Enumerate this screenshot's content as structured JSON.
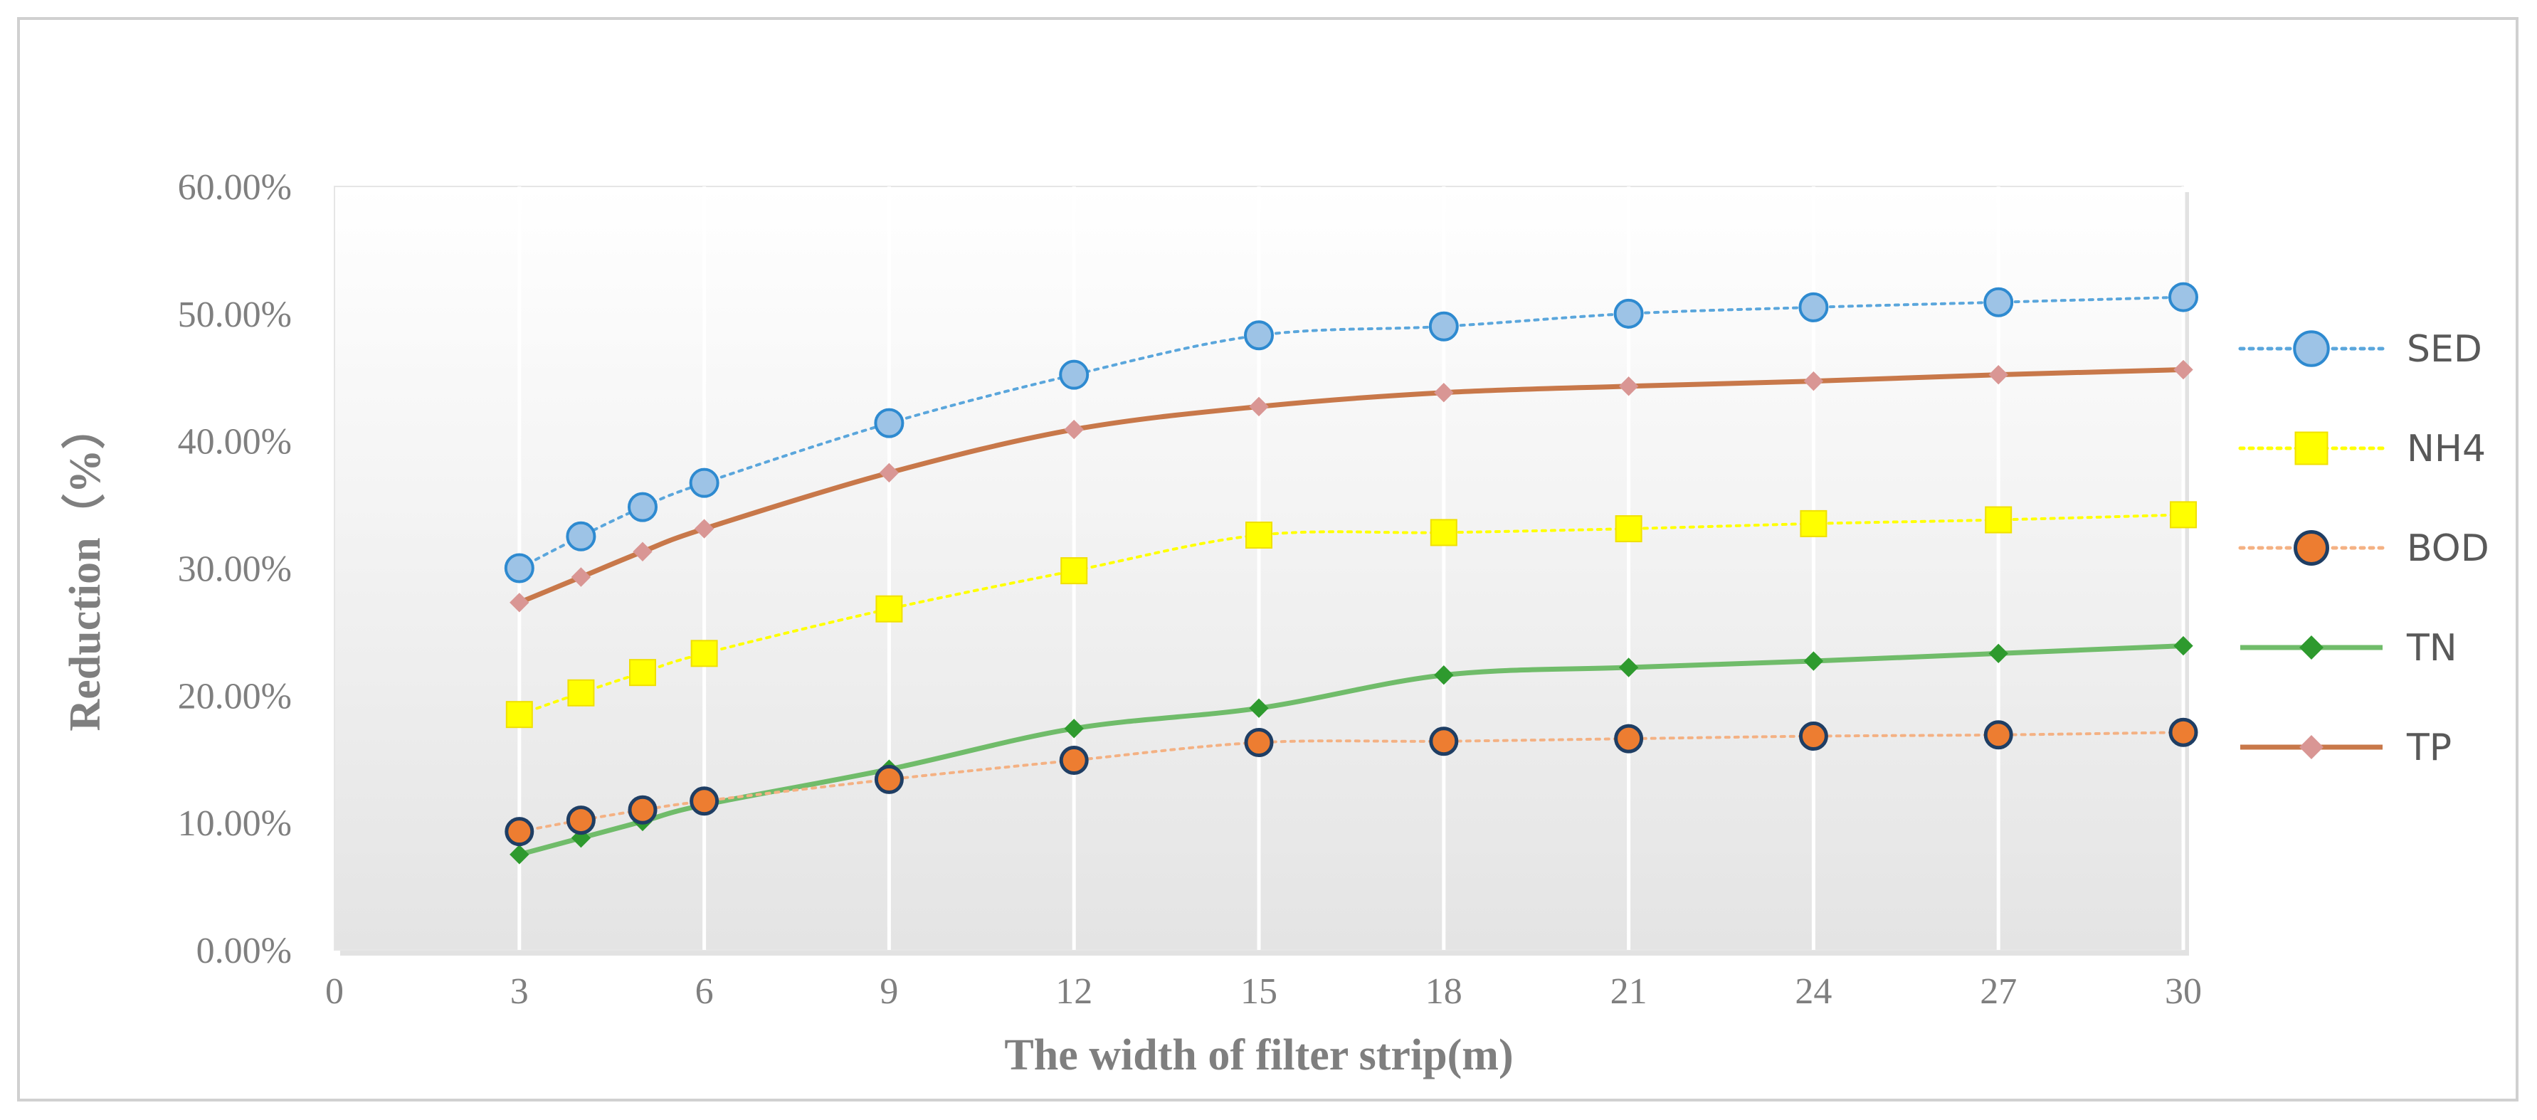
{
  "chart_data": {
    "type": "line",
    "xlabel": "The width of filter strip(m)",
    "ylabel": "Reduction（%）",
    "xlim": [
      0,
      30
    ],
    "ylim": [
      0,
      60
    ],
    "x_ticks": [
      "0",
      "3",
      "6",
      "9",
      "12",
      "15",
      "18",
      "21",
      "24",
      "27",
      "30"
    ],
    "y_ticks": [
      "0.00%",
      "10.00%",
      "20.00%",
      "30.00%",
      "40.00%",
      "50.00%",
      "60.00%"
    ],
    "grid": "vertical",
    "legend_position": "right",
    "x": [
      3,
      4,
      5,
      6,
      9,
      12,
      15,
      18,
      21,
      24,
      27,
      30
    ],
    "series": [
      {
        "name": "SED",
        "values": [
          30.0,
          32.5,
          34.8,
          36.7,
          41.4,
          45.2,
          48.3,
          49.0,
          50.0,
          50.5,
          50.9,
          51.3
        ],
        "color": "#5aa6dc",
        "fill": "#9dc3e6",
        "marker": "circle",
        "line": "dotted"
      },
      {
        "name": "NH4",
        "values": [
          18.5,
          20.2,
          21.8,
          23.3,
          26.8,
          29.8,
          32.6,
          32.8,
          33.1,
          33.5,
          33.8,
          34.2
        ],
        "color": "#ffff00",
        "fill": "#ffff00",
        "marker": "square",
        "line": "dotted"
      },
      {
        "name": "BOD",
        "values": [
          9.3,
          10.2,
          11.0,
          11.7,
          13.4,
          14.9,
          16.3,
          16.4,
          16.6,
          16.8,
          16.9,
          17.1
        ],
        "color": "#f4b183",
        "fill": "#ed7d31",
        "marker": "circle-dark",
        "line": "dotted"
      },
      {
        "name": "TN",
        "values": [
          7.5,
          8.8,
          10.1,
          11.4,
          14.2,
          17.4,
          19.0,
          21.6,
          22.2,
          22.7,
          23.3,
          23.9
        ],
        "color": "#70bc6a",
        "fill": "#2e9a2e",
        "marker": "diamond",
        "line": "solid"
      },
      {
        "name": "TP",
        "values": [
          27.3,
          29.3,
          31.3,
          33.1,
          37.5,
          40.9,
          42.7,
          43.8,
          44.3,
          44.7,
          45.2,
          45.6
        ],
        "color": "#c8784a",
        "fill": "#d99694",
        "marker": "diamond",
        "line": "solid"
      }
    ]
  }
}
